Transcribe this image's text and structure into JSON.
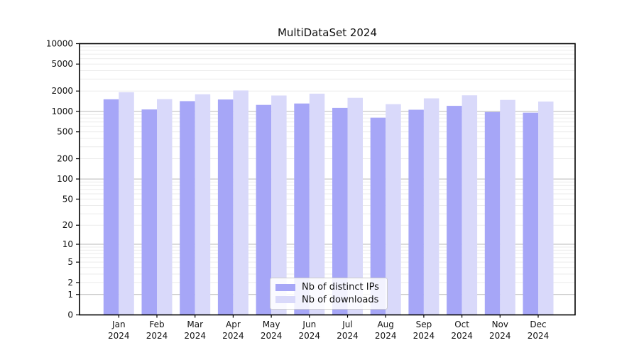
{
  "title": "MultiDataSet 2024",
  "chart_data": {
    "type": "bar",
    "title": "MultiDataSet 2024",
    "categories": [
      "Jan",
      "Feb",
      "Mar",
      "Apr",
      "May",
      "Jun",
      "Jul",
      "Aug",
      "Sep",
      "Oct",
      "Nov",
      "Dec"
    ],
    "category_second_line": "2024",
    "series": [
      {
        "name": "Nb of distinct IPs",
        "color": "#a6a6f7",
        "values": [
          1510,
          1070,
          1420,
          1500,
          1250,
          1310,
          1130,
          810,
          1060,
          1210,
          980,
          960
        ]
      },
      {
        "name": "Nb of downloads",
        "color": "#d9d9fa",
        "values": [
          1920,
          1520,
          1790,
          2040,
          1720,
          1830,
          1590,
          1280,
          1560,
          1730,
          1480,
          1400
        ]
      }
    ],
    "yscale": "log10(1+v)",
    "ylim": [
      0,
      10000
    ],
    "yticks": [
      0,
      1,
      2,
      5,
      10,
      20,
      50,
      100,
      200,
      500,
      1000,
      2000,
      5000,
      10000
    ],
    "grid": {
      "major_color": "#b8b8b8",
      "minor_color": "#ebebeb"
    },
    "frame_color": "#000000",
    "background": "#ffffff",
    "legend_position": "lower-center-inside"
  }
}
